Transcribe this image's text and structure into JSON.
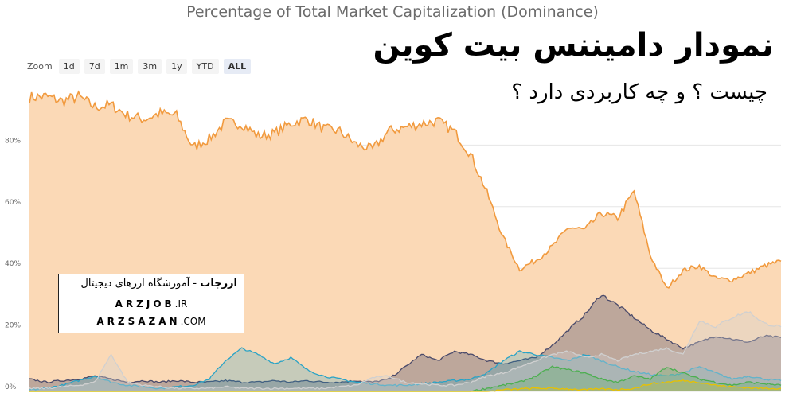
{
  "header": {
    "title": "Percentage of Total Market Capitalization (Dominance)"
  },
  "zoom": {
    "label": "Zoom",
    "buttons": [
      "1d",
      "7d",
      "1m",
      "3m",
      "1y",
      "YTD",
      "ALL"
    ],
    "active": "ALL"
  },
  "overlay": {
    "title": "نمودار دامیننس بیت کوین",
    "subtitle": "چیست ؟ و چه کاربردی دارد ؟"
  },
  "brand": {
    "name": "ارزجاب",
    "tagline": " - آموزشگاه ارزهای دیجیتال",
    "site1_name": "ARZJOB",
    "site1_tld": ".IR",
    "site2_name": "ARZSAZAN",
    "site2_tld": ".COM"
  },
  "colors": {
    "bitcoin": "#f7a24b",
    "bitcoin_fill": "#fbd9b6",
    "grid": "#e6e6e6",
    "tick": "#6d8fb8"
  },
  "chart_data": {
    "type": "area",
    "title": "Percentage of Total Market Capitalization (Dominance)",
    "ylim": [
      0,
      100
    ],
    "yticks": [
      "0%",
      "20%",
      "40%",
      "60%",
      "80%"
    ],
    "grid": true,
    "series": [
      {
        "color": "#f19a3e",
        "fill": "#fbd9b6",
        "values": [
          95.5,
          95.8,
          94.3,
          95.7,
          92.4,
          93.0,
          89.7,
          88.4,
          90.3,
          89.6,
          79.2,
          82.0,
          87.4,
          86.9,
          82.9,
          83.8,
          87.0,
          88.5,
          85.3,
          84.5,
          80.2,
          78.6,
          84.6,
          85.8,
          87.0,
          87.8,
          84.4,
          77.0,
          64.6,
          49.9,
          39.7,
          42.6,
          47.0,
          53.3,
          52.5,
          57.9,
          56.3,
          65.0,
          44.2,
          33.4,
          39.3,
          40.8,
          36.7,
          36.2,
          38.4,
          40.8,
          42.3
        ]
      },
      {
        "color": "#4a4a6a",
        "fill": "rgba(74,74,106,0.35)",
        "values": [
          4.0,
          3.0,
          3.5,
          4.0,
          5.0,
          4.0,
          3.0,
          3.5,
          3.0,
          3.5,
          3.0,
          3.0,
          3.5,
          3.0,
          3.0,
          3.5,
          3.0,
          3.5,
          3.0,
          3.0,
          3.5,
          3.0,
          4.0,
          8.0,
          12.0,
          10.0,
          13.0,
          12.0,
          10.0,
          9.0,
          10.0,
          11.0,
          15.0,
          20.0,
          25.0,
          31.5,
          28.0,
          24.0,
          20.0,
          17.0,
          14.0,
          16.0,
          18.0,
          17.0,
          16.0,
          18.0,
          17.5
        ]
      },
      {
        "color": "#29a3c6",
        "fill": "rgba(41,163,198,0.25)",
        "values": [
          0.5,
          1.0,
          2.0,
          3.5,
          5.0,
          3.0,
          2.0,
          1.5,
          1.0,
          1.5,
          2.0,
          4.0,
          10.0,
          14.0,
          12.0,
          9.0,
          11.0,
          7.0,
          5.0,
          4.0,
          3.0,
          2.5,
          2.0,
          2.0,
          2.5,
          3.0,
          3.5,
          4.0,
          6.0,
          10.0,
          13.0,
          12.0,
          11.0,
          10.0,
          12.0,
          10.0,
          8.0,
          6.5,
          5.5,
          5.0,
          6.0,
          8.0,
          6.0,
          4.0,
          5.0,
          4.0,
          3.5
        ]
      },
      {
        "color": "#d0d0d0",
        "fill": "rgba(208,208,208,0.35)",
        "values": [
          1.0,
          1.0,
          1.5,
          2.0,
          3.0,
          12.0,
          3.0,
          2.0,
          1.5,
          1.0,
          1.0,
          1.0,
          1.5,
          1.0,
          1.0,
          1.0,
          1.0,
          1.0,
          1.0,
          1.5,
          2.0,
          4.5,
          5.0,
          3.0,
          2.5,
          2.0,
          2.0,
          3.0,
          5.0,
          6.0,
          8.0,
          10.0,
          12.0,
          13.0,
          11.0,
          12.0,
          10.0,
          12.0,
          13.0,
          14.0,
          12.0,
          23.0,
          21.0,
          24.0,
          26.0,
          22.0,
          21.0
        ]
      },
      {
        "color": "#4caf50",
        "fill": "rgba(76,175,80,0.25)",
        "values": [
          0,
          0,
          0,
          0,
          0,
          0,
          0,
          0,
          0,
          0,
          0,
          0,
          0,
          0,
          0,
          0,
          0,
          0,
          0,
          0,
          0,
          0,
          0,
          0,
          0,
          0,
          0,
          0,
          1.0,
          2.0,
          3.0,
          5.0,
          8.0,
          7.0,
          6.0,
          4.0,
          3.0,
          5.0,
          4.0,
          8.0,
          6.0,
          4.0,
          3.0,
          2.0,
          3.0,
          2.5,
          2.0
        ]
      },
      {
        "color": "#e8c100",
        "fill": "rgba(232,193,0,0.2)",
        "values": [
          0,
          0,
          0,
          0,
          0,
          0,
          0,
          0,
          0,
          0,
          0,
          0,
          0,
          0,
          0,
          0,
          0,
          0,
          0,
          0,
          0,
          0,
          0,
          0,
          0,
          0,
          0,
          0,
          0,
          0.5,
          0.8,
          1.0,
          1.0,
          0.8,
          0.5,
          0.8,
          0.6,
          1.0,
          2.5,
          3.0,
          3.5,
          3.0,
          2.0,
          1.5,
          1.2,
          1.0,
          1.0
        ]
      }
    ]
  }
}
